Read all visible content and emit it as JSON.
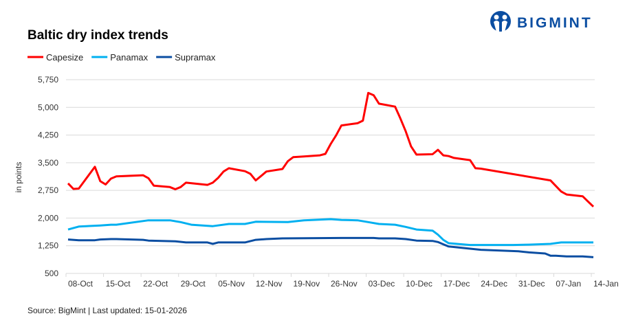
{
  "logo": {
    "text": "BIGMINT",
    "color": "#0b4ea2"
  },
  "chart_data": {
    "type": "line",
    "title": "Baltic dry index trends",
    "ylabel": "in points",
    "xlabel": "",
    "ylim": [
      500,
      5750
    ],
    "yticks": [
      500,
      1250,
      2000,
      2750,
      3500,
      4250,
      5000,
      5750
    ],
    "ytick_labels": [
      "500",
      "1,250",
      "2,000",
      "2,750",
      "3,500",
      "4,250",
      "5,000",
      "5,750"
    ],
    "xlim": [
      "2025-10-08",
      "2026-01-15"
    ],
    "xticks": [
      "2025-10-08",
      "2025-10-15",
      "2025-10-22",
      "2025-10-29",
      "2025-11-05",
      "2025-11-12",
      "2025-11-19",
      "2025-11-26",
      "2025-12-03",
      "2025-12-10",
      "2025-12-17",
      "2025-12-24",
      "2025-12-31",
      "2026-01-07",
      "2026-01-14"
    ],
    "xtick_labels": [
      "08-Oct",
      "15-Oct",
      "22-Oct",
      "29-Oct",
      "05-Nov",
      "12-Nov",
      "19-Nov",
      "26-Nov",
      "03-Dec",
      "10-Dec",
      "17-Dec",
      "24-Dec",
      "31-Dec",
      "07-Jan",
      "14-Jan"
    ],
    "grid": "horizontal",
    "legend": "top-left",
    "series": [
      {
        "name": "Capesize",
        "color": "#ff0000",
        "points": [
          [
            "2025-10-08",
            2940
          ],
          [
            "2025-10-09",
            2790
          ],
          [
            "2025-10-10",
            2800
          ],
          [
            "2025-10-13",
            3390
          ],
          [
            "2025-10-14",
            3000
          ],
          [
            "2025-10-15",
            2910
          ],
          [
            "2025-10-16",
            3070
          ],
          [
            "2025-10-17",
            3130
          ],
          [
            "2025-10-22",
            3160
          ],
          [
            "2025-10-23",
            3080
          ],
          [
            "2025-10-24",
            2880
          ],
          [
            "2025-10-27",
            2840
          ],
          [
            "2025-10-28",
            2780
          ],
          [
            "2025-10-29",
            2840
          ],
          [
            "2025-10-30",
            2960
          ],
          [
            "2025-11-03",
            2900
          ],
          [
            "2025-11-04",
            2960
          ],
          [
            "2025-11-05",
            3090
          ],
          [
            "2025-11-06",
            3260
          ],
          [
            "2025-11-07",
            3350
          ],
          [
            "2025-11-10",
            3270
          ],
          [
            "2025-11-11",
            3200
          ],
          [
            "2025-11-12",
            3020
          ],
          [
            "2025-11-13",
            3140
          ],
          [
            "2025-11-14",
            3260
          ],
          [
            "2025-11-17",
            3330
          ],
          [
            "2025-11-18",
            3540
          ],
          [
            "2025-11-19",
            3650
          ],
          [
            "2025-11-21",
            3670
          ],
          [
            "2025-11-24",
            3700
          ],
          [
            "2025-11-25",
            3740
          ],
          [
            "2025-11-26",
            4010
          ],
          [
            "2025-11-27",
            4240
          ],
          [
            "2025-11-28",
            4510
          ],
          [
            "2025-12-01",
            4570
          ],
          [
            "2025-12-02",
            4640
          ],
          [
            "2025-12-03",
            5390
          ],
          [
            "2025-12-04",
            5330
          ],
          [
            "2025-12-05",
            5100
          ],
          [
            "2025-12-08",
            5020
          ],
          [
            "2025-12-09",
            4700
          ],
          [
            "2025-12-10",
            4350
          ],
          [
            "2025-12-11",
            3940
          ],
          [
            "2025-12-12",
            3720
          ],
          [
            "2025-12-15",
            3730
          ],
          [
            "2025-12-16",
            3850
          ],
          [
            "2025-12-17",
            3700
          ],
          [
            "2025-12-18",
            3680
          ],
          [
            "2025-12-19",
            3630
          ],
          [
            "2025-12-22",
            3570
          ],
          [
            "2025-12-23",
            3350
          ],
          [
            "2025-12-24",
            3340
          ],
          [
            "2026-01-06",
            3020
          ],
          [
            "2026-01-07",
            2870
          ],
          [
            "2026-01-08",
            2720
          ],
          [
            "2026-01-09",
            2640
          ],
          [
            "2026-01-12",
            2590
          ],
          [
            "2026-01-13",
            2450
          ],
          [
            "2026-01-14",
            2310
          ]
        ]
      },
      {
        "name": "Panamax",
        "color": "#00b0f0",
        "points": [
          [
            "2025-10-08",
            1690
          ],
          [
            "2025-10-10",
            1770
          ],
          [
            "2025-10-14",
            1800
          ],
          [
            "2025-10-16",
            1820
          ],
          [
            "2025-10-17",
            1820
          ],
          [
            "2025-10-23",
            1940
          ],
          [
            "2025-10-27",
            1940
          ],
          [
            "2025-10-29",
            1890
          ],
          [
            "2025-10-31",
            1820
          ],
          [
            "2025-11-04",
            1780
          ],
          [
            "2025-11-07",
            1840
          ],
          [
            "2025-11-10",
            1840
          ],
          [
            "2025-11-12",
            1900
          ],
          [
            "2025-11-18",
            1890
          ],
          [
            "2025-11-21",
            1940
          ],
          [
            "2025-11-26",
            1970
          ],
          [
            "2025-11-28",
            1950
          ],
          [
            "2025-12-01",
            1940
          ],
          [
            "2025-12-03",
            1890
          ],
          [
            "2025-12-05",
            1840
          ],
          [
            "2025-12-08",
            1820
          ],
          [
            "2025-12-10",
            1760
          ],
          [
            "2025-12-12",
            1690
          ],
          [
            "2025-12-15",
            1660
          ],
          [
            "2025-12-16",
            1550
          ],
          [
            "2025-12-17",
            1410
          ],
          [
            "2025-12-18",
            1320
          ],
          [
            "2025-12-22",
            1270
          ],
          [
            "2025-12-30",
            1270
          ],
          [
            "2026-01-02",
            1280
          ],
          [
            "2026-01-06",
            1300
          ],
          [
            "2026-01-08",
            1340
          ],
          [
            "2026-01-14",
            1340
          ]
        ]
      },
      {
        "name": "Supramax",
        "color": "#0b4ea2",
        "points": [
          [
            "2025-10-08",
            1420
          ],
          [
            "2025-10-10",
            1400
          ],
          [
            "2025-10-13",
            1400
          ],
          [
            "2025-10-14",
            1420
          ],
          [
            "2025-10-16",
            1430
          ],
          [
            "2025-10-17",
            1430
          ],
          [
            "2025-10-22",
            1410
          ],
          [
            "2025-10-23",
            1390
          ],
          [
            "2025-10-28",
            1370
          ],
          [
            "2025-10-30",
            1340
          ],
          [
            "2025-11-03",
            1340
          ],
          [
            "2025-11-04",
            1300
          ],
          [
            "2025-11-05",
            1340
          ],
          [
            "2025-11-10",
            1340
          ],
          [
            "2025-11-12",
            1410
          ],
          [
            "2025-11-14",
            1430
          ],
          [
            "2025-11-17",
            1450
          ],
          [
            "2025-11-28",
            1460
          ],
          [
            "2025-12-04",
            1460
          ],
          [
            "2025-12-05",
            1450
          ],
          [
            "2025-12-08",
            1450
          ],
          [
            "2025-12-10",
            1430
          ],
          [
            "2025-12-12",
            1390
          ],
          [
            "2025-12-15",
            1380
          ],
          [
            "2025-12-16",
            1350
          ],
          [
            "2025-12-17",
            1290
          ],
          [
            "2025-12-18",
            1230
          ],
          [
            "2025-12-22",
            1170
          ],
          [
            "2025-12-24",
            1140
          ],
          [
            "2025-12-31",
            1100
          ],
          [
            "2026-01-02",
            1070
          ],
          [
            "2026-01-05",
            1040
          ],
          [
            "2026-01-06",
            980
          ],
          [
            "2026-01-07",
            980
          ],
          [
            "2026-01-09",
            960
          ],
          [
            "2026-01-12",
            960
          ],
          [
            "2026-01-14",
            940
          ]
        ]
      }
    ]
  },
  "footer": {
    "source": "Source: BigMint | Last updated: 15-01-2026"
  }
}
